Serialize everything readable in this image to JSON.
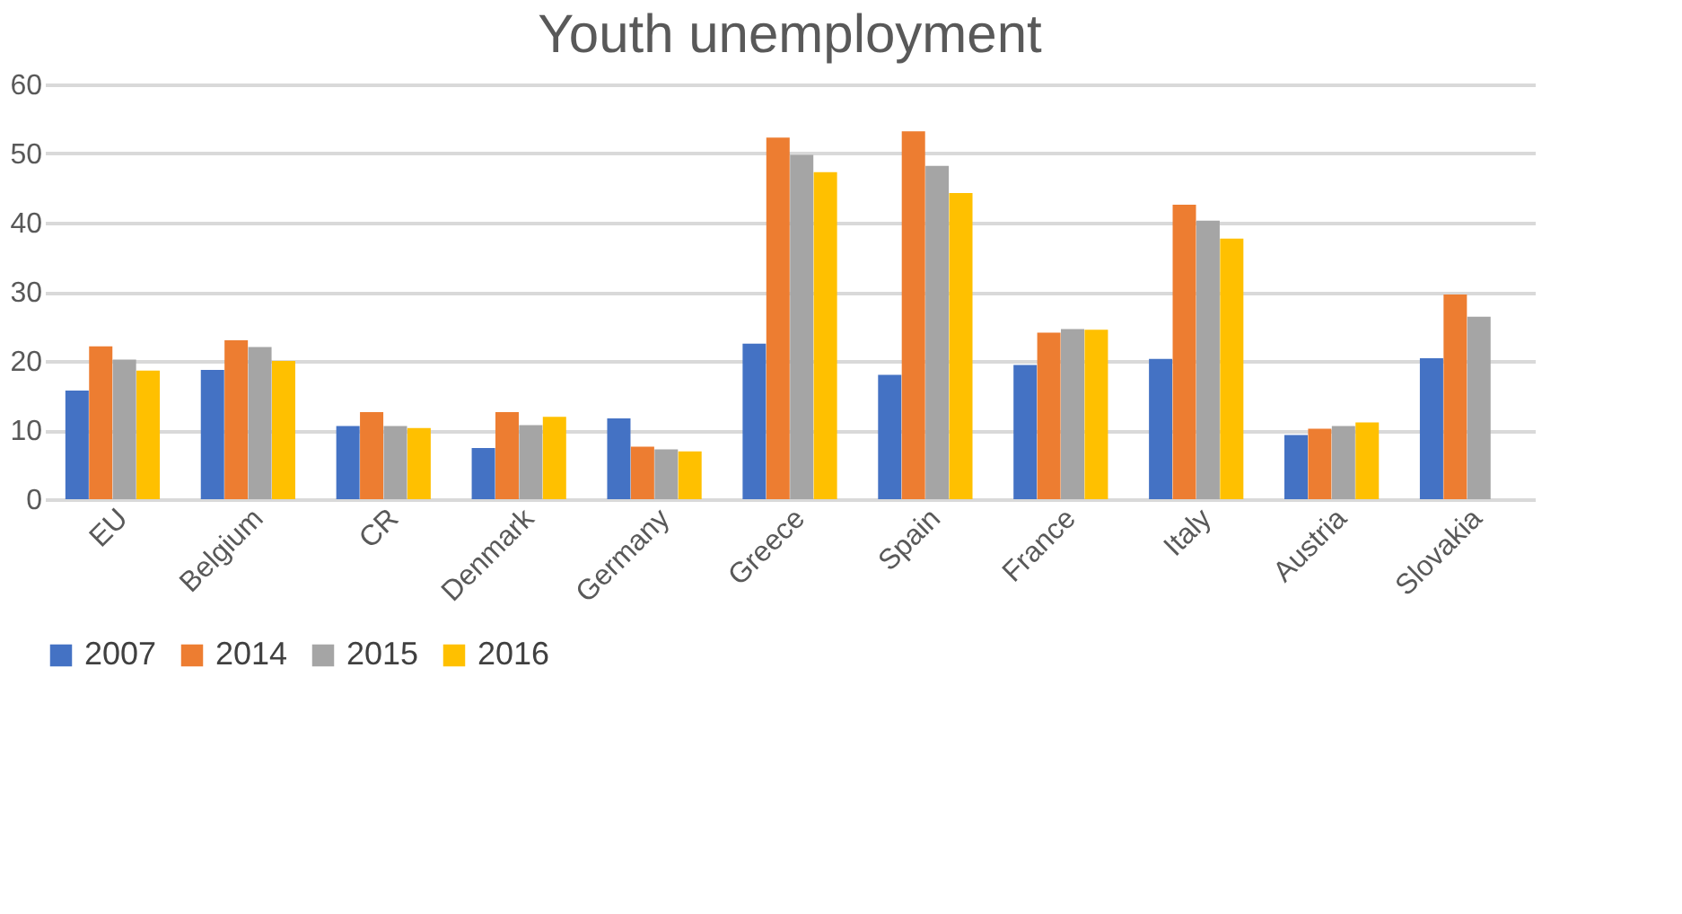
{
  "chart_data": {
    "type": "bar",
    "title": "Youth unemployment",
    "categories": [
      "EU",
      "Belgium",
      "CR",
      "Denmark",
      "Germany",
      "Greece",
      "Spain",
      "France",
      "Italy",
      "Austria",
      "Slovakia"
    ],
    "series": [
      {
        "name": "2007",
        "color": "#4472c4",
        "values": [
          15.7,
          18.7,
          10.6,
          7.4,
          11.7,
          22.5,
          18.0,
          19.4,
          20.3,
          9.3,
          20.4
        ]
      },
      {
        "name": "2014",
        "color": "#ed7d31",
        "values": [
          22.1,
          23.0,
          12.6,
          12.6,
          7.6,
          52.3,
          53.2,
          24.1,
          42.6,
          10.2,
          29.6
        ]
      },
      {
        "name": "2015",
        "color": "#a5a5a5",
        "values": [
          20.2,
          22.0,
          10.6,
          10.7,
          7.2,
          49.8,
          48.2,
          24.6,
          40.3,
          10.6,
          26.4
        ]
      },
      {
        "name": "2016",
        "color": "#ffc000",
        "values": [
          18.6,
          20.0,
          10.3,
          11.9,
          6.9,
          47.3,
          44.3,
          24.5,
          37.7,
          11.1,
          null
        ]
      }
    ],
    "ylim": [
      0,
      60
    ],
    "yticks": [
      0,
      10,
      20,
      30,
      40,
      50,
      60
    ],
    "grid": "y",
    "legend": "bottom"
  }
}
